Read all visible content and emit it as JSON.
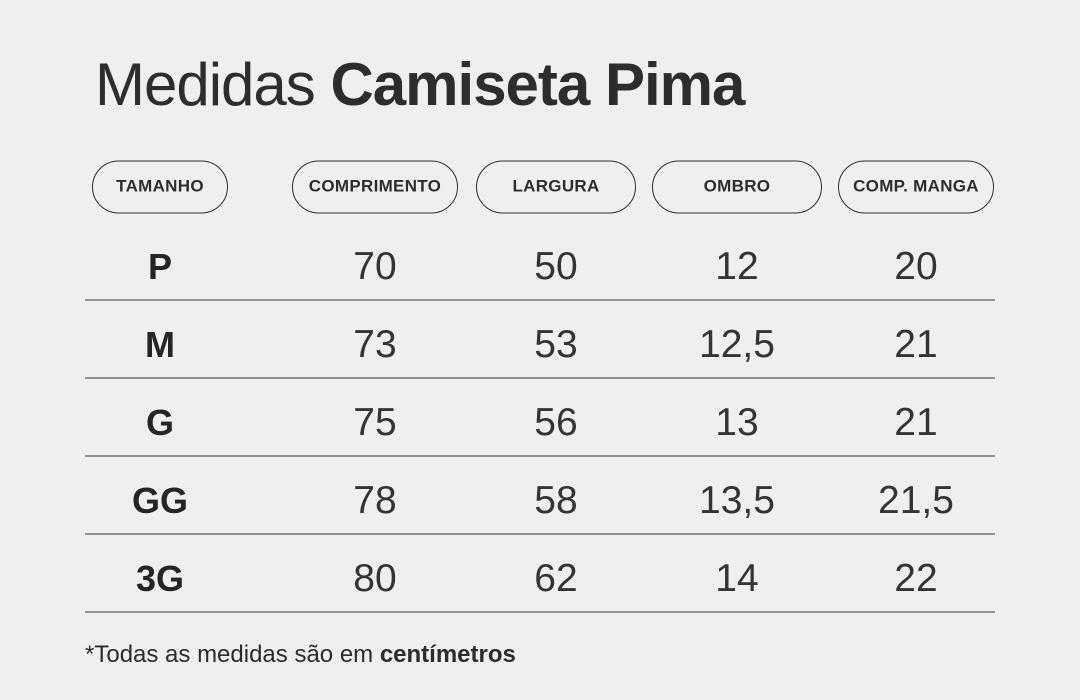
{
  "colors": {
    "background": "#efefef",
    "text": "#2b2d2e",
    "divider": "#8f9091",
    "pill_border": "#2c2d2e"
  },
  "title": {
    "regular": "Medidas",
    "bold": "Camiseta Pima"
  },
  "chart_data": {
    "type": "table",
    "title": "Medidas Camiseta Pima",
    "columns": [
      "TAMANHO",
      "COMPRIMENTO",
      "LARGURA",
      "OMBRO",
      "COMP. MANGA"
    ],
    "rows": [
      {
        "size": "P",
        "values": [
          "70",
          "50",
          "12",
          "20"
        ]
      },
      {
        "size": "M",
        "values": [
          "73",
          "53",
          "12,5",
          "21"
        ]
      },
      {
        "size": "G",
        "values": [
          "75",
          "56",
          "13",
          "21"
        ]
      },
      {
        "size": "GG",
        "values": [
          "78",
          "58",
          "13,5",
          "21,5"
        ]
      },
      {
        "size": "3G",
        "values": [
          "80",
          "62",
          "14",
          "22"
        ]
      }
    ],
    "units": "centímetros",
    "note": "*Todas as medidas são em centímetros"
  },
  "footnote": {
    "regular": "*Todas as medidas são em ",
    "bold": "centímetros"
  }
}
